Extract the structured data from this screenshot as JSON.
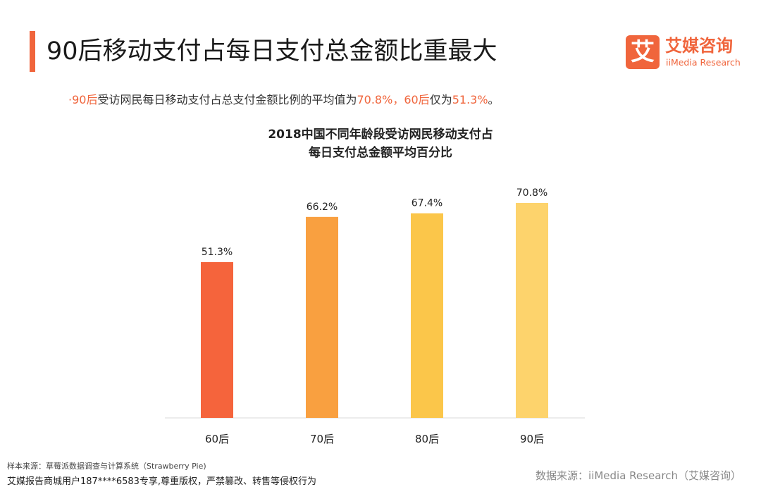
{
  "header": {
    "title": "90后移动支付占每日支付总金额比重最大"
  },
  "logo": {
    "mark": "艾",
    "cn": "艾媒咨询",
    "en": "iiMedia Research"
  },
  "summary": {
    "bullet": "·",
    "part1": "90后",
    "part2": "受访网民每日移动支付占总支付金额比例的平均值为",
    "part3": "70.8%，60后",
    "part4": "仅为",
    "part5": "51.3%",
    "part6": "。"
  },
  "colors": {
    "accent": "#f0653c"
  },
  "chart_data": {
    "type": "bar",
    "title_line1": "2018中国不同年龄段受访网民移动支付占",
    "title_line2": "每日支付总金额平均百分比",
    "categories": [
      "60后",
      "70后",
      "80后",
      "90后"
    ],
    "values": [
      51.3,
      66.2,
      67.4,
      70.8
    ],
    "value_labels": [
      "51.3%",
      "66.2%",
      "67.4%",
      "70.8%"
    ],
    "bar_colors": [
      "#f5643c",
      "#f9a040",
      "#fbc64a",
      "#fdd36c"
    ],
    "ylim": [
      0,
      100
    ],
    "grid": false,
    "legend": "none"
  },
  "footer": {
    "sample_source": "样本来源：草莓派数据调查与计算系统（Strawberry Pie)",
    "copyright": "艾媒报告商城用户187****6583专享,尊重版权，严禁篡改、转售等侵权行为",
    "data_source": "数据来源：iiMedia Research（艾媒咨询）"
  }
}
